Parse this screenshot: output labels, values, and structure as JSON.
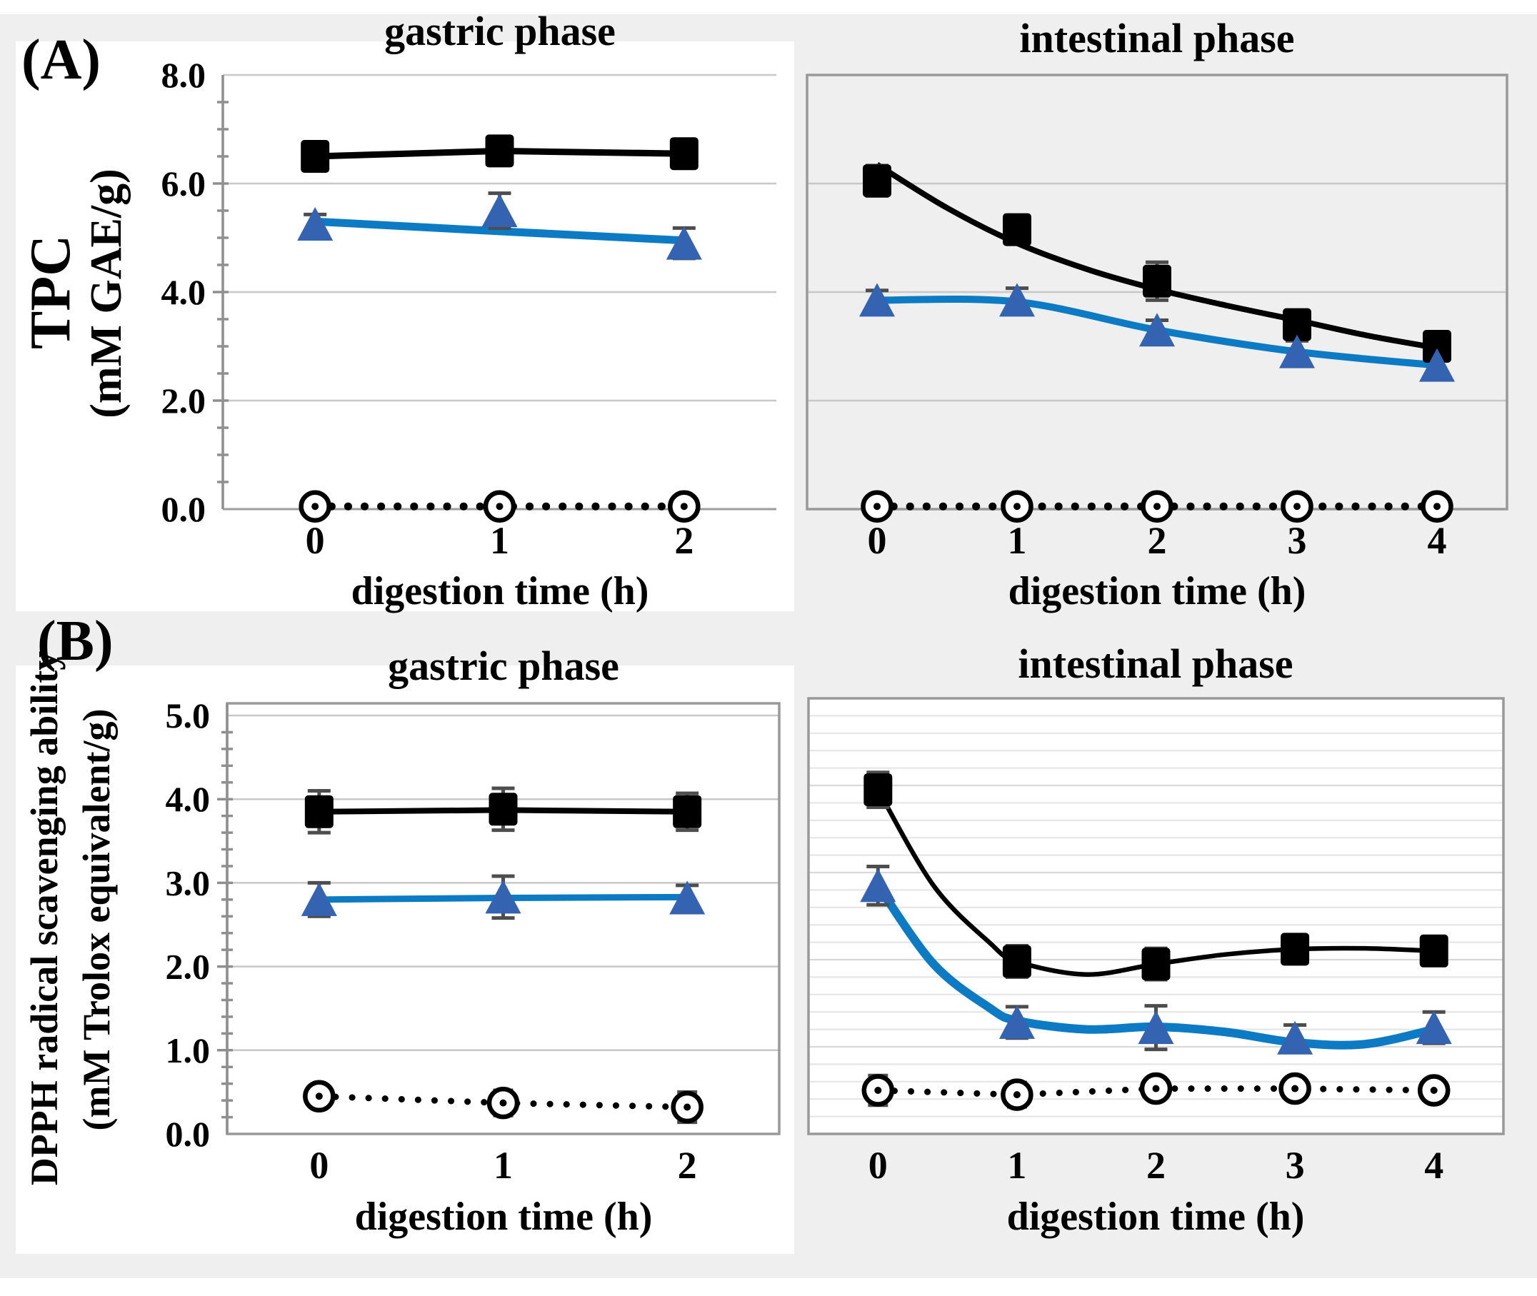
{
  "figure": {
    "panel_a_label": "(A)",
    "panel_b_label": "(B)",
    "ylabels": {
      "a": [
        "TPC",
        "(mM GAE/g)"
      ],
      "b": [
        "DPPH radical scavenging ability",
        "(mM Trolox equivalent/g)"
      ]
    },
    "colors": {
      "black_series": "#000000",
      "blue_triangle_fill": "#3363b1",
      "blue_line": "#0c7bc3",
      "error_bar": "#4d4d4d",
      "grid_major": "#c8c8c8",
      "grid_minor": "#e6e6e6",
      "grid_major_on_white": "#d8d8d8",
      "axis_line": "#999999",
      "page_bg": "#efefef",
      "plot_bg_gray": "#efefef",
      "plot_bg_white": "#ffffff"
    }
  },
  "chart_data": [
    {
      "id": "tpc-gastric",
      "type": "line",
      "title": "gastric phase",
      "xlabel": "digestion time (h)",
      "ylabel": "TPC (mM GAE/g)",
      "x": [
        0,
        1,
        2
      ],
      "ylim": [
        0,
        8
      ],
      "ytick_step": 2,
      "ytick_labels": [
        "0.0",
        "2.0",
        "4.0",
        "6.0",
        "8.0"
      ],
      "minor_tick_step": 0.5,
      "grid": "major",
      "plot_bg": "#ffffff",
      "box_border": false,
      "show_ytick_labels": true,
      "series": [
        {
          "name": "black-squares",
          "marker": "square",
          "line": "solid",
          "curve": false,
          "line_width": 9,
          "values": [
            6.5,
            6.6,
            6.55
          ],
          "errors": [
            0.2,
            0.22,
            0.25
          ],
          "line_points": [
            [
              0,
              6.5
            ],
            [
              1,
              6.6
            ],
            [
              2,
              6.55
            ]
          ]
        },
        {
          "name": "blue-triangles",
          "marker": "triangle",
          "line": "solid",
          "curve": false,
          "line_width": 11,
          "values": [
            5.25,
            5.5,
            4.9
          ],
          "errors": [
            0.18,
            0.32,
            0.28
          ],
          "line_points": [
            [
              0,
              5.3
            ],
            [
              1,
              5.12
            ],
            [
              2,
              4.95
            ]
          ]
        },
        {
          "name": "open-circles",
          "marker": "circle",
          "line": "dotted",
          "curve": false,
          "line_width": 11,
          "values": [
            0.05,
            0.05,
            0.05
          ],
          "errors": [
            0,
            0,
            0
          ],
          "line_points": [
            [
              0,
              0.05
            ],
            [
              1,
              0.05
            ],
            [
              2,
              0.05
            ]
          ]
        }
      ]
    },
    {
      "id": "tpc-intestinal",
      "type": "line",
      "title": "intestinal phase",
      "xlabel": "digestion time (h)",
      "ylabel": "TPC (mM GAE/g)",
      "x": [
        0,
        1,
        2,
        3,
        4
      ],
      "ylim": [
        0,
        8
      ],
      "ytick_step": 2,
      "ytick_labels": [
        "0.0",
        "2.0",
        "4.0",
        "6.0",
        "8.0"
      ],
      "minor_tick_step": 0,
      "grid": "major",
      "plot_bg": "#efefef",
      "box_border": true,
      "show_ytick_labels": false,
      "series": [
        {
          "name": "black-squares",
          "marker": "square",
          "line": "solid",
          "curve": true,
          "line_width": 8,
          "values": [
            6.05,
            5.15,
            4.2,
            3.4,
            3.0
          ],
          "errors": [
            0.28,
            0.12,
            0.35,
            0.15,
            0.22
          ],
          "line_points": [
            [
              0,
              6.35
            ],
            [
              0.5,
              5.55
            ],
            [
              1,
              4.9
            ],
            [
              1.5,
              4.42
            ],
            [
              2,
              4.05
            ],
            [
              2.5,
              3.75
            ],
            [
              3,
              3.48
            ],
            [
              3.5,
              3.2
            ],
            [
              4,
              2.97
            ]
          ]
        },
        {
          "name": "blue-triangles",
          "marker": "triangle",
          "line": "solid",
          "curve": true,
          "line_width": 10,
          "values": [
            3.85,
            3.85,
            3.3,
            2.9,
            2.65
          ],
          "errors": [
            0.18,
            0.22,
            0.18,
            0.2,
            0.12
          ],
          "line_points": [
            [
              0,
              3.85
            ],
            [
              1,
              3.82
            ],
            [
              2,
              3.3
            ],
            [
              3,
              2.9
            ],
            [
              4,
              2.65
            ]
          ]
        },
        {
          "name": "open-circles",
          "marker": "circle",
          "line": "dotted",
          "curve": false,
          "line_width": 11,
          "values": [
            0.05,
            0.05,
            0.05,
            0.05,
            0.05
          ],
          "errors": [
            0,
            0,
            0,
            0,
            0
          ],
          "line_points": [
            [
              0,
              0.05
            ],
            [
              1,
              0.05
            ],
            [
              2,
              0.05
            ],
            [
              3,
              0.05
            ],
            [
              4,
              0.05
            ]
          ]
        }
      ]
    },
    {
      "id": "dpph-gastric",
      "type": "line",
      "title": "gastric phase",
      "xlabel": "digestion time (h)",
      "ylabel": "DPPH radical scavenging ability (mM Trolox equivalent/g)",
      "x": [
        0,
        1,
        2
      ],
      "ylim": [
        0,
        5
      ],
      "ytick_step": 1,
      "ytick_labels": [
        "0.0",
        "1.0",
        "2.0",
        "3.0",
        "4.0",
        "5.0"
      ],
      "minor_tick_step": 0.2,
      "grid": "major",
      "plot_bg": "#ffffff",
      "box_border": true,
      "show_ytick_labels": true,
      "series": [
        {
          "name": "black-squares",
          "marker": "square",
          "line": "solid",
          "curve": false,
          "line_width": 8,
          "values": [
            3.85,
            3.88,
            3.85
          ],
          "errors": [
            0.25,
            0.25,
            0.22
          ],
          "line_points": [
            [
              0,
              3.85
            ],
            [
              1,
              3.87
            ],
            [
              2,
              3.85
            ]
          ]
        },
        {
          "name": "blue-triangles",
          "marker": "triangle",
          "line": "solid",
          "curve": false,
          "line_width": 9,
          "values": [
            2.8,
            2.83,
            2.82
          ],
          "errors": [
            0.2,
            0.25,
            0.15
          ],
          "line_points": [
            [
              0,
              2.8
            ],
            [
              1,
              2.82
            ],
            [
              2,
              2.83
            ]
          ]
        },
        {
          "name": "open-circles",
          "marker": "circle",
          "line": "dotted",
          "curve": false,
          "line_width": 9,
          "values": [
            0.45,
            0.37,
            0.32
          ],
          "errors": [
            0.13,
            0.15,
            0.18
          ],
          "line_points": [
            [
              0,
              0.45
            ],
            [
              1,
              0.37
            ],
            [
              2,
              0.32
            ]
          ]
        }
      ]
    },
    {
      "id": "dpph-intestinal",
      "type": "line",
      "title": "intestinal phase",
      "xlabel": "digestion time (h)",
      "ylabel": "DPPH radical scavenging ability (mM Trolox equivalent/g)",
      "x": [
        0,
        1,
        2,
        3,
        4
      ],
      "ylim": [
        0,
        5
      ],
      "ytick_step": 1,
      "ytick_labels": [
        "0.0",
        "1.0",
        "2.0",
        "3.0",
        "4.0",
        "5.0"
      ],
      "minor_tick_step": 0,
      "grid": "minor",
      "minor_grid_step": 0.2,
      "plot_bg": "#ffffff",
      "box_border": true,
      "show_ytick_labels": false,
      "series": [
        {
          "name": "black-squares",
          "marker": "square",
          "line": "solid",
          "curve": true,
          "line_width": 6.5,
          "values": [
            3.95,
            1.98,
            1.95,
            2.12,
            2.1
          ],
          "errors": [
            0.2,
            0.18,
            0.18,
            0.12,
            0.15
          ],
          "line_points": [
            [
              0,
              3.95
            ],
            [
              0.4,
              2.85
            ],
            [
              0.8,
              2.2
            ],
            [
              1,
              1.98
            ],
            [
              1.5,
              1.83
            ],
            [
              2,
              1.95
            ],
            [
              2.5,
              2.06
            ],
            [
              3,
              2.12
            ],
            [
              3.5,
              2.13
            ],
            [
              4,
              2.1
            ]
          ]
        },
        {
          "name": "blue-triangles",
          "marker": "triangle",
          "line": "solid",
          "curve": true,
          "line_width": 12,
          "values": [
            2.85,
            1.28,
            1.22,
            1.1,
            1.22
          ],
          "errors": [
            0.22,
            0.18,
            0.25,
            0.15,
            0.18
          ],
          "line_points": [
            [
              0,
              2.85
            ],
            [
              0.4,
              1.95
            ],
            [
              0.8,
              1.45
            ],
            [
              1,
              1.3
            ],
            [
              1.5,
              1.2
            ],
            [
              2,
              1.23
            ],
            [
              2.5,
              1.17
            ],
            [
              3,
              1.05
            ],
            [
              3.5,
              1.03
            ],
            [
              4,
              1.2
            ]
          ]
        },
        {
          "name": "open-circles",
          "marker": "circle",
          "line": "dotted",
          "curve": false,
          "line_width": 9,
          "values": [
            0.5,
            0.45,
            0.52,
            0.52,
            0.5
          ],
          "errors": [
            0.17,
            0.14,
            0.12,
            0.12,
            0
          ],
          "line_points": [
            [
              0,
              0.5
            ],
            [
              1,
              0.45
            ],
            [
              2,
              0.52
            ],
            [
              3,
              0.52
            ],
            [
              4,
              0.5
            ]
          ]
        }
      ]
    }
  ]
}
